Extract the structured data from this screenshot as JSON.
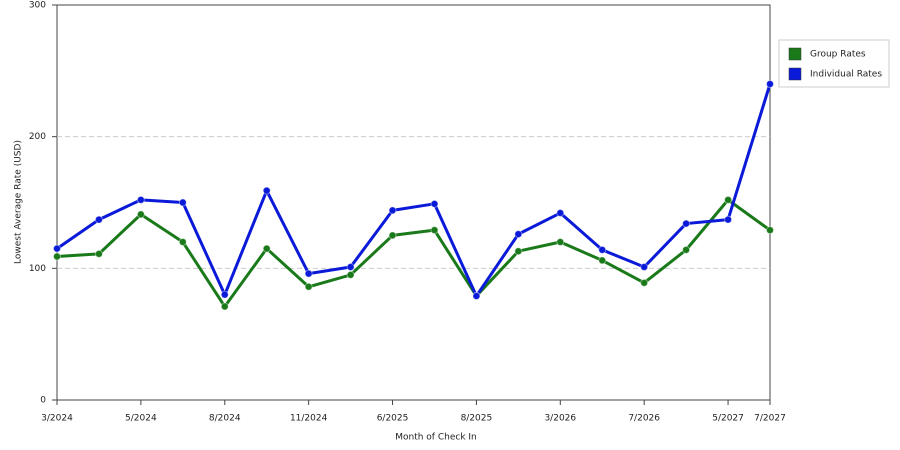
{
  "chart_data": {
    "type": "line",
    "x_label": "Month of Check In",
    "y_label": "Lowest Average Rate (USD)",
    "categories": [
      "3/2024",
      null,
      "5/2024",
      null,
      "8/2024",
      null,
      "11/2024",
      null,
      "6/2025",
      null,
      "8/2025",
      null,
      "3/2026",
      null,
      "7/2026",
      null,
      "5/2027",
      "7/2027"
    ],
    "series": [
      {
        "name": "Group Rates",
        "color": "#1a7a1a",
        "values": [
          109,
          111,
          141,
          120,
          71,
          115,
          86,
          95,
          125,
          129,
          79,
          113,
          120,
          106,
          89,
          114,
          152,
          129
        ]
      },
      {
        "name": "Individual Rates",
        "color": "#0a1ad8",
        "values": [
          115,
          137,
          152,
          150,
          80,
          159,
          96,
          101,
          144,
          149,
          79,
          126,
          142,
          114,
          101,
          134,
          137,
          240
        ]
      }
    ],
    "ylim": [
      0,
      300
    ],
    "yticks": [
      0,
      100,
      200,
      300
    ],
    "grid": true
  }
}
